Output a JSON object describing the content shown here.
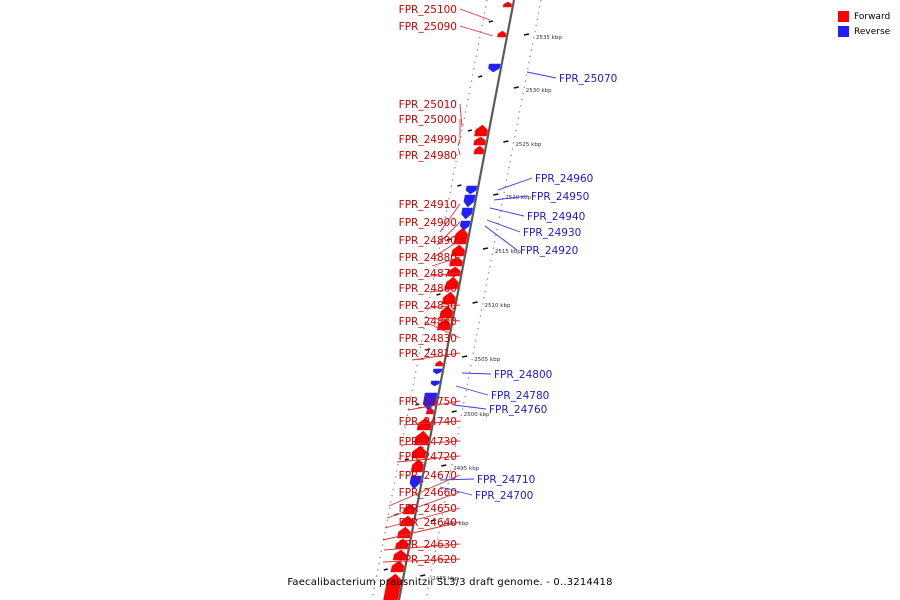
{
  "caption": "Faecalibacterium prausnitzii SL3/3 draft genome. - 0..3214418",
  "legend": [
    {
      "label": "Forward",
      "color": "#ff0000"
    },
    {
      "label": "Reverse",
      "color": "#1f1fff"
    }
  ],
  "ticks": [
    "2535 kbp",
    "2530 kbp",
    "2525 kbp",
    "2520 kbp",
    "2515 kbp",
    "2510 kbp",
    "2505 kbp",
    "2500 kbp",
    "2495 kbp",
    "2490 kbp",
    "2485 kbp"
  ],
  "genes_forward": [
    "FPR_25100",
    "FPR_25090",
    "FPR_25010",
    "FPR_25000",
    "FPR_24990",
    "FPR_24980",
    "FPR_24910",
    "FPR_24900",
    "FPR_24890",
    "FPR_24880",
    "FPR_24870",
    "FPR_24860",
    "FPR_24850",
    "FPR_24840",
    "FPR_24830",
    "FPR_24810",
    "FPR_24750",
    "FPR_24740",
    "FPR_24730",
    "FPR_24720",
    "FPR_24670",
    "FPR_24660",
    "FPR_24650",
    "FPR_24640",
    "FPR_24630",
    "FPR_24620"
  ],
  "genes_reverse": [
    "FPR_25070",
    "FPR_24960",
    "FPR_24950",
    "FPR_24940",
    "FPR_24930",
    "FPR_24920",
    "FPR_24800",
    "FPR_24780",
    "FPR_24760",
    "FPR_24710",
    "FPR_24700"
  ]
}
